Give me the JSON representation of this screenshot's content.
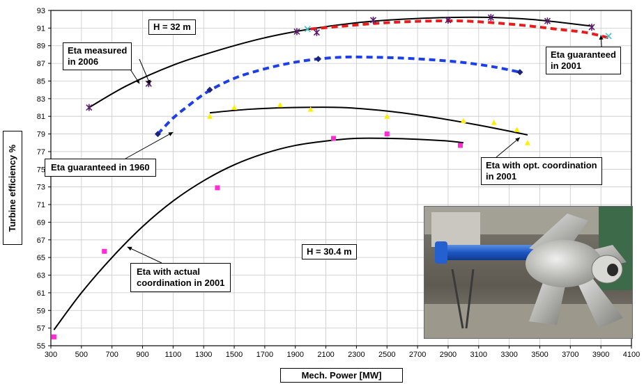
{
  "chart_data": {
    "type": "scatter",
    "xlabel": "Mech. Power [MW]",
    "ylabel": "Turbine efficiency %",
    "xlim": [
      300,
      4100
    ],
    "ylim": [
      55,
      93
    ],
    "xticks": [
      300,
      500,
      700,
      900,
      1100,
      1300,
      1500,
      1700,
      1900,
      2100,
      2300,
      2500,
      2700,
      2900,
      3100,
      3300,
      3500,
      3700,
      3900,
      4100
    ],
    "yticks": [
      55,
      57,
      59,
      61,
      63,
      65,
      67,
      69,
      71,
      73,
      75,
      77,
      79,
      81,
      83,
      85,
      87,
      89,
      91,
      93
    ],
    "grid": true,
    "series": [
      {
        "kind": "curve",
        "color": "#000000",
        "style": "solid",
        "x": [
          550,
          800,
          1100,
          1400,
          1700,
          2000,
          2300,
          2600,
          2900,
          3200,
          3500,
          3850
        ],
        "y": [
          82.0,
          84.5,
          86.8,
          88.5,
          89.9,
          90.9,
          91.6,
          92.0,
          92.2,
          92.2,
          91.9,
          91.2
        ]
      },
      {
        "kind": "points",
        "marker": "star",
        "color": "#5a1a6e",
        "x": [
          550,
          940,
          1910,
          2040,
          2410,
          2900,
          3180,
          3550,
          3840
        ],
        "y": [
          82.0,
          84.7,
          90.6,
          90.5,
          91.9,
          91.9,
          92.2,
          91.8,
          91.1
        ]
      },
      {
        "kind": "curve",
        "color": "#e81c1c",
        "style": "dashed",
        "x": [
          2000,
          2200,
          2400,
          2600,
          2800,
          3000,
          3200,
          3400,
          3600,
          3800,
          3950
        ],
        "y": [
          90.9,
          91.2,
          91.5,
          91.7,
          91.8,
          91.8,
          91.6,
          91.3,
          90.9,
          90.5,
          89.9
        ]
      },
      {
        "kind": "points",
        "marker": "x",
        "color": "#3fc1c9",
        "x": [
          1980,
          3950
        ],
        "y": [
          90.9,
          90.1
        ]
      },
      {
        "kind": "curve",
        "color": "#1c3fe8",
        "style": "dashed",
        "x": [
          1000,
          1100,
          1200,
          1300,
          1400,
          1500,
          1600,
          1800,
          2000,
          2200,
          2400,
          2600,
          2800,
          3000,
          3200,
          3370
        ],
        "y": [
          79.0,
          80.8,
          82.2,
          83.5,
          84.5,
          85.3,
          85.9,
          86.8,
          87.4,
          87.7,
          87.7,
          87.6,
          87.4,
          87.1,
          86.6,
          86.0
        ]
      },
      {
        "kind": "points",
        "marker": "diamond",
        "color": "#1a237e",
        "x": [
          1000,
          1340,
          2050,
          3370
        ],
        "y": [
          79.0,
          84.0,
          87.5,
          86.0
        ]
      },
      {
        "kind": "curve",
        "color": "#000000",
        "style": "solid",
        "x": [
          1340,
          1600,
          1900,
          2200,
          2500,
          2800,
          3100,
          3420
        ],
        "y": [
          81.4,
          81.8,
          82.0,
          82.0,
          81.6,
          80.9,
          80.0,
          78.9
        ]
      },
      {
        "kind": "points",
        "marker": "triangle",
        "color": "#ffee00",
        "x": [
          1340,
          1500,
          1800,
          2000,
          2500,
          3000,
          3200,
          3350,
          3420
        ],
        "y": [
          81.0,
          82.0,
          82.3,
          81.8,
          81.0,
          80.5,
          80.3,
          79.5,
          78.0
        ]
      },
      {
        "kind": "curve",
        "color": "#000000",
        "style": "solid",
        "x": [
          320,
          500,
          700,
          900,
          1100,
          1300,
          1500,
          1700,
          1900,
          2100,
          2300,
          2500,
          2700,
          2900,
          3000
        ],
        "y": [
          56.8,
          61.0,
          65.0,
          68.5,
          71.4,
          73.7,
          75.5,
          76.8,
          77.7,
          78.2,
          78.5,
          78.5,
          78.4,
          78.2,
          78.0
        ]
      },
      {
        "kind": "points",
        "marker": "square",
        "color": "#ff2bd6",
        "x": [
          320,
          650,
          1390,
          2150,
          2500,
          2980
        ],
        "y": [
          56.0,
          65.7,
          72.9,
          78.5,
          79.0,
          77.7
        ]
      }
    ],
    "annotations": [
      {
        "id": "eta-2006",
        "lines": [
          "Eta measured",
          "in 2006"
        ]
      },
      {
        "id": "eta-guaranteed-2001",
        "lines": [
          "Eta guaranteed",
          "in 2001"
        ]
      },
      {
        "id": "eta-guaranteed-1960",
        "lines": [
          "Eta guaranteed in 1960"
        ]
      },
      {
        "id": "eta-opt-2001",
        "lines": [
          "Eta with opt. coordination",
          " in 2001"
        ]
      },
      {
        "id": "eta-actual-2001",
        "lines": [
          "Eta with actual",
          "coordination in 2001"
        ]
      },
      {
        "id": "head-32",
        "lines": [
          "H = 32 m"
        ]
      },
      {
        "id": "head-30",
        "lines": [
          "H = 30.4 m"
        ]
      }
    ],
    "photo": {
      "subject": "kaplan-turbine-runner-photo"
    }
  }
}
